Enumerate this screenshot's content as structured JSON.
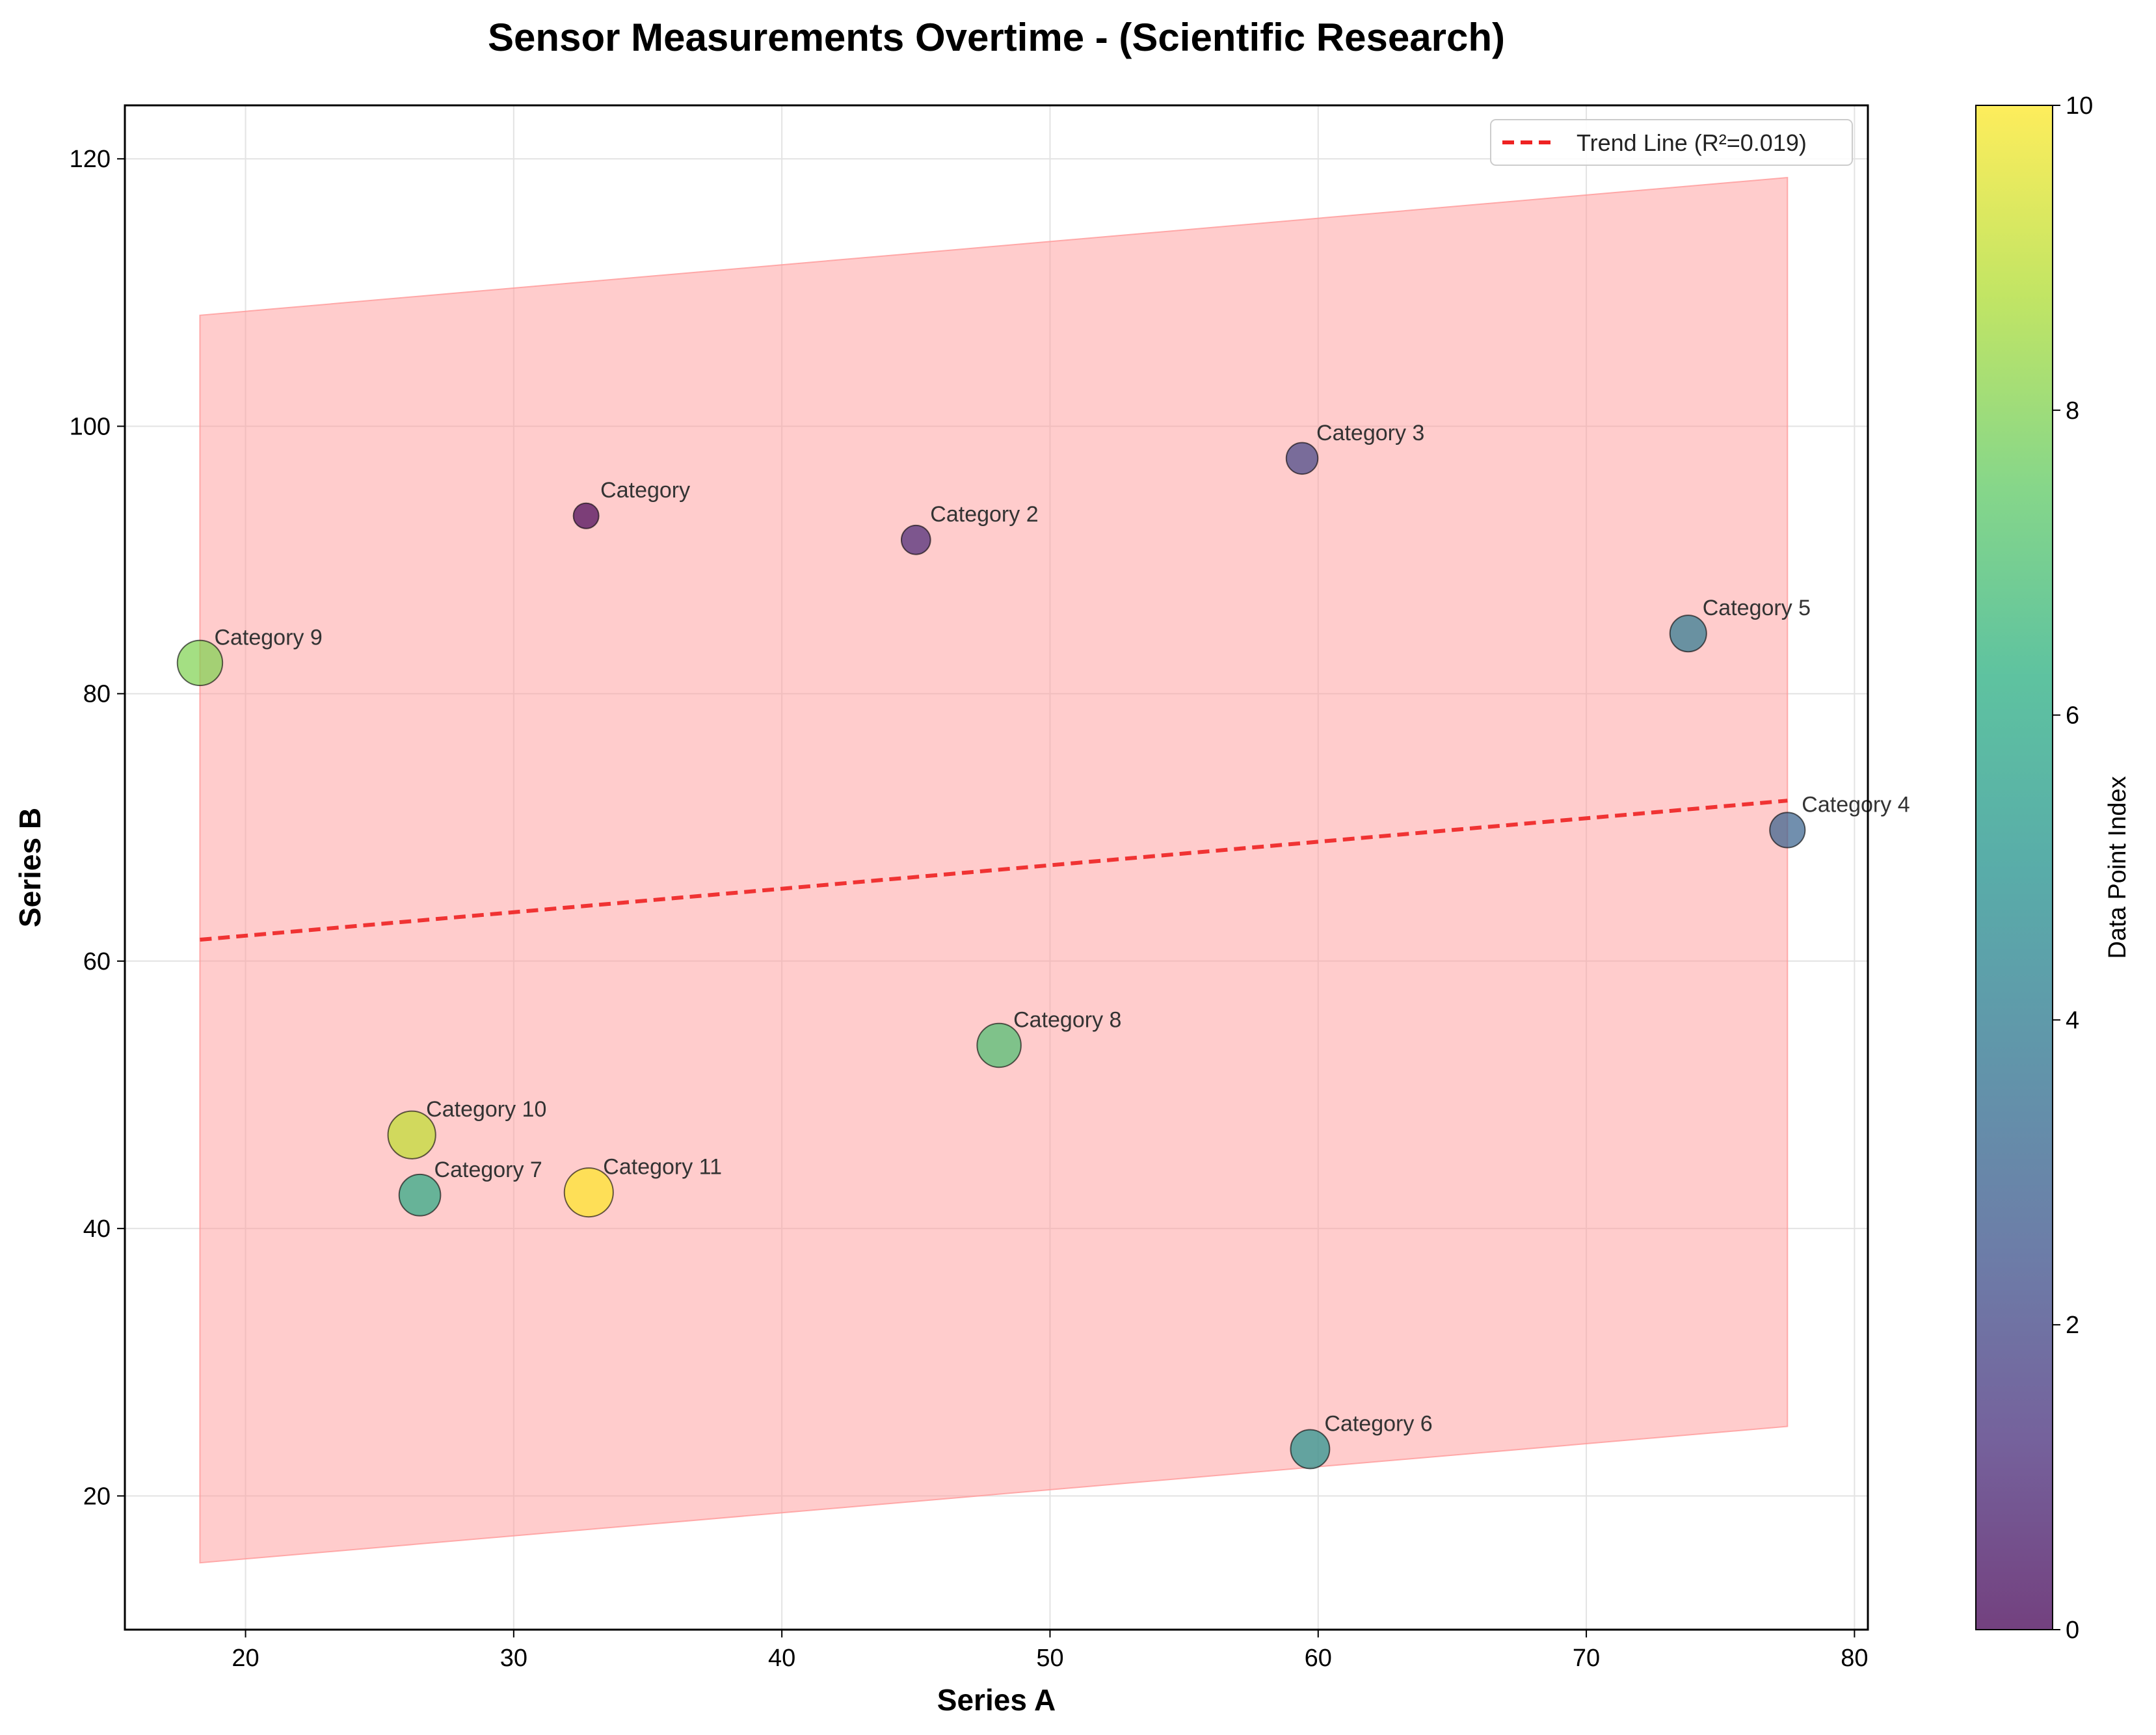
{
  "chart_data": {
    "type": "scatter",
    "title": "Sensor Measurements Overtime - (Scientific Research)",
    "xlabel": "Series A",
    "ylabel": "Series B",
    "xlim": [
      15.5,
      80.5
    ],
    "ylim": [
      10,
      124
    ],
    "xticks": [
      20,
      30,
      40,
      50,
      60,
      70,
      80
    ],
    "yticks": [
      20,
      40,
      60,
      80,
      100,
      120
    ],
    "grid": true,
    "points": [
      {
        "label": "Category",
        "x": 32.7,
        "y": 93.3,
        "index": 0,
        "size": 1
      },
      {
        "label": "Category 2",
        "x": 45.0,
        "y": 91.5,
        "index": 1,
        "size": 1.3
      },
      {
        "label": "Category 3",
        "x": 59.4,
        "y": 97.6,
        "index": 2,
        "size": 1.5
      },
      {
        "label": "Category 4",
        "x": 77.5,
        "y": 69.8,
        "index": 3,
        "size": 1.8
      },
      {
        "label": "Category 5",
        "x": 73.8,
        "y": 84.5,
        "index": 4,
        "size": 1.9
      },
      {
        "label": "Category 6",
        "x": 59.7,
        "y": 23.5,
        "index": 5,
        "size": 2.1
      },
      {
        "label": "Category 7",
        "x": 26.5,
        "y": 42.5,
        "index": 6,
        "size": 2.3
      },
      {
        "label": "Category 8",
        "x": 48.1,
        "y": 53.7,
        "index": 7,
        "size": 2.5
      },
      {
        "label": "Category 9",
        "x": 18.3,
        "y": 82.3,
        "index": 8,
        "size": 2.6
      },
      {
        "label": "Category 10",
        "x": 26.2,
        "y": 47.0,
        "index": 9,
        "size": 2.8
      },
      {
        "label": "Category 11",
        "x": 32.8,
        "y": 42.7,
        "index": 10,
        "size": 2.9
      }
    ],
    "trend_line": {
      "label": "Trend Line (R²=0.019)",
      "x": [
        18.3,
        77.5
      ],
      "y": [
        61.6,
        72.0
      ],
      "color": "#ee2222"
    },
    "band": {
      "x": [
        18.3,
        77.5
      ],
      "upper": [
        108.3,
        118.6
      ],
      "lower": [
        15.0,
        25.2
      ],
      "color": "#ff9999"
    },
    "legend": {
      "position": "top-right"
    },
    "colorbar": {
      "label": "Data Point Index",
      "colormap": "viridis",
      "range": [
        0,
        10
      ],
      "ticks": [
        0,
        2,
        4,
        6,
        8,
        10
      ]
    }
  }
}
